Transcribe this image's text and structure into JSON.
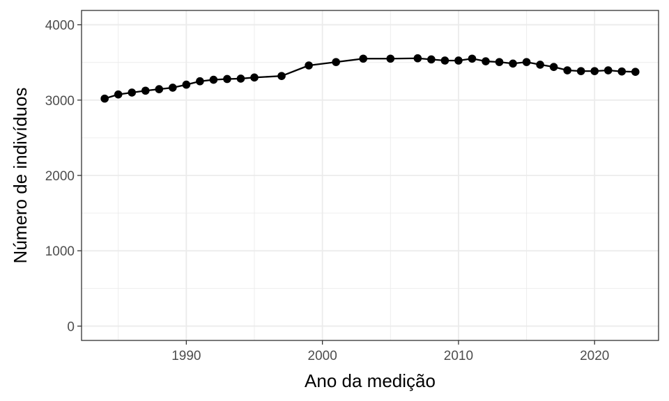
{
  "chart_data": {
    "type": "line",
    "title": "",
    "xlabel": "Ano da medição",
    "ylabel": "Número de indivíduos",
    "xlim": [
      1982.3,
      2024.7
    ],
    "ylim": [
      -190,
      4190
    ],
    "x_ticks": [
      1990,
      2000,
      2010,
      2020
    ],
    "y_ticks": [
      0,
      1000,
      2000,
      3000,
      4000
    ],
    "grid": true,
    "legend": "none",
    "colors": {
      "line": "#000000",
      "point": "#000000",
      "grid": "#ebebeb",
      "panel_border": "#333333"
    },
    "series": [
      {
        "x": [
          1984,
          1985,
          1986,
          1987,
          1988,
          1989,
          1990,
          1991,
          1992,
          1993,
          1994,
          1995,
          1997,
          1999,
          2001,
          2003,
          2005,
          2007,
          2008,
          2009,
          2010,
          2011,
          2012,
          2013,
          2014,
          2015,
          2016,
          2017,
          2018,
          2019,
          2020,
          2021,
          2022,
          2023
        ],
        "y": [
          3020,
          3075,
          3100,
          3125,
          3145,
          3165,
          3205,
          3250,
          3270,
          3280,
          3285,
          3300,
          3320,
          3460,
          3505,
          3550,
          3550,
          3555,
          3540,
          3525,
          3525,
          3550,
          3515,
          3505,
          3485,
          3505,
          3470,
          3440,
          3395,
          3385,
          3385,
          3395,
          3380,
          3375
        ]
      }
    ]
  }
}
